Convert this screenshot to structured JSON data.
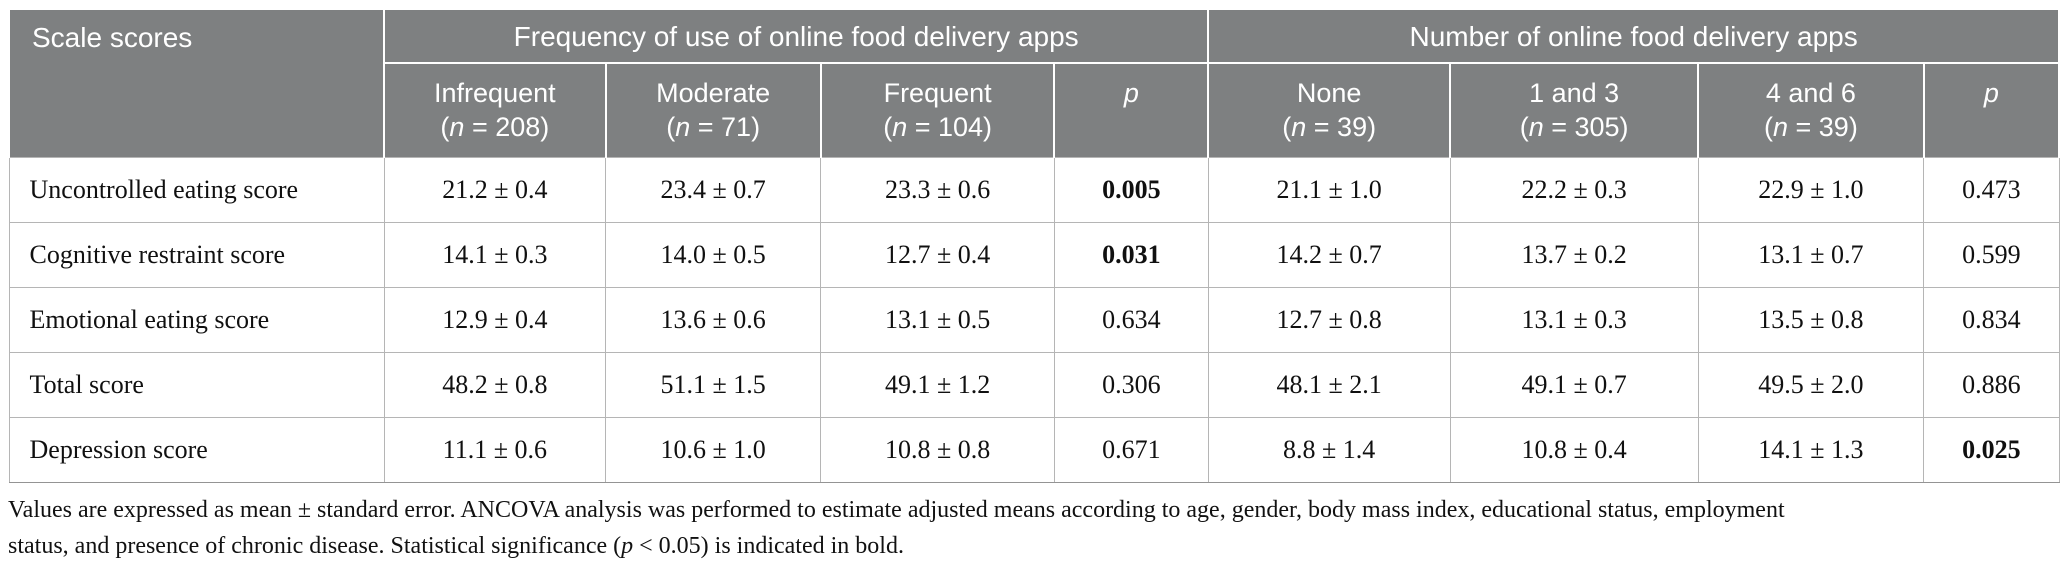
{
  "colors": {
    "header_bg": "#7e8081",
    "header_text": "#ffffff",
    "body_text": "#101010",
    "grid_line": "#b5b5b5"
  },
  "table": {
    "corner_header": "Scale scores",
    "groups": [
      {
        "label": "Frequency of use of online food delivery apps"
      },
      {
        "label": "Number of online food delivery apps"
      }
    ],
    "columns": [
      {
        "label": "Infrequent",
        "n_pre": "(",
        "n_italic": "n",
        "n_post": " = 208)"
      },
      {
        "label": "Moderate",
        "n_pre": "(",
        "n_italic": "n",
        "n_post": " = 71)"
      },
      {
        "label": "Frequent",
        "n_pre": "(",
        "n_italic": "n",
        "n_post": " = 104)"
      },
      {
        "label": "p"
      },
      {
        "label": "None",
        "n_pre": "(",
        "n_italic": "n",
        "n_post": " = 39)"
      },
      {
        "label": "1 and 3",
        "n_pre": "(",
        "n_italic": "n",
        "n_post": " = 305)"
      },
      {
        "label": "4 and 6",
        "n_pre": "(",
        "n_italic": "n",
        "n_post": " = 39)"
      },
      {
        "label": "p"
      }
    ],
    "rows": [
      {
        "label": "Uncontrolled eating score",
        "values": [
          "21.2 ± 0.4",
          "23.4 ± 0.7",
          "23.3 ± 0.6",
          "0.005",
          "21.1 ± 1.0",
          "22.2 ± 0.3",
          "22.9 ± 1.0",
          "0.473"
        ],
        "bold": [
          3
        ]
      },
      {
        "label": "Cognitive restraint score",
        "values": [
          "14.1 ± 0.3",
          "14.0 ± 0.5",
          "12.7 ± 0.4",
          "0.031",
          "14.2 ± 0.7",
          "13.7 ± 0.2",
          "13.1 ± 0.7",
          "0.599"
        ],
        "bold": [
          3
        ]
      },
      {
        "label": "Emotional eating score",
        "values": [
          "12.9 ± 0.4",
          "13.6 ± 0.6",
          "13.1 ± 0.5",
          "0.634",
          "12.7 ± 0.8",
          "13.1 ± 0.3",
          "13.5 ± 0.8",
          "0.834"
        ],
        "bold": []
      },
      {
        "label": "Total score",
        "values": [
          "48.2 ± 0.8",
          "51.1 ± 1.5",
          "49.1 ± 1.2",
          "0.306",
          "48.1 ± 2.1",
          "49.1 ± 0.7",
          "49.5 ± 2.0",
          "0.886"
        ],
        "bold": []
      },
      {
        "label": "Depression score",
        "values": [
          "11.1 ± 0.6",
          "10.6 ± 1.0",
          "10.8 ± 0.8",
          "0.671",
          "8.8 ± 1.4",
          "10.8 ± 0.4",
          "14.1 ± 1.3",
          "0.025"
        ],
        "bold": [
          7
        ]
      }
    ]
  },
  "footnote": {
    "line1": "Values are expressed as mean ± standard error. ANCOVA analysis was performed to estimate adjusted means according to age, gender, body mass index, educational status, employment",
    "line2_pre": "status, and presence of chronic disease. Statistical significance (",
    "line2_italic": "p",
    "line2_post": " < 0.05) is indicated in bold."
  }
}
